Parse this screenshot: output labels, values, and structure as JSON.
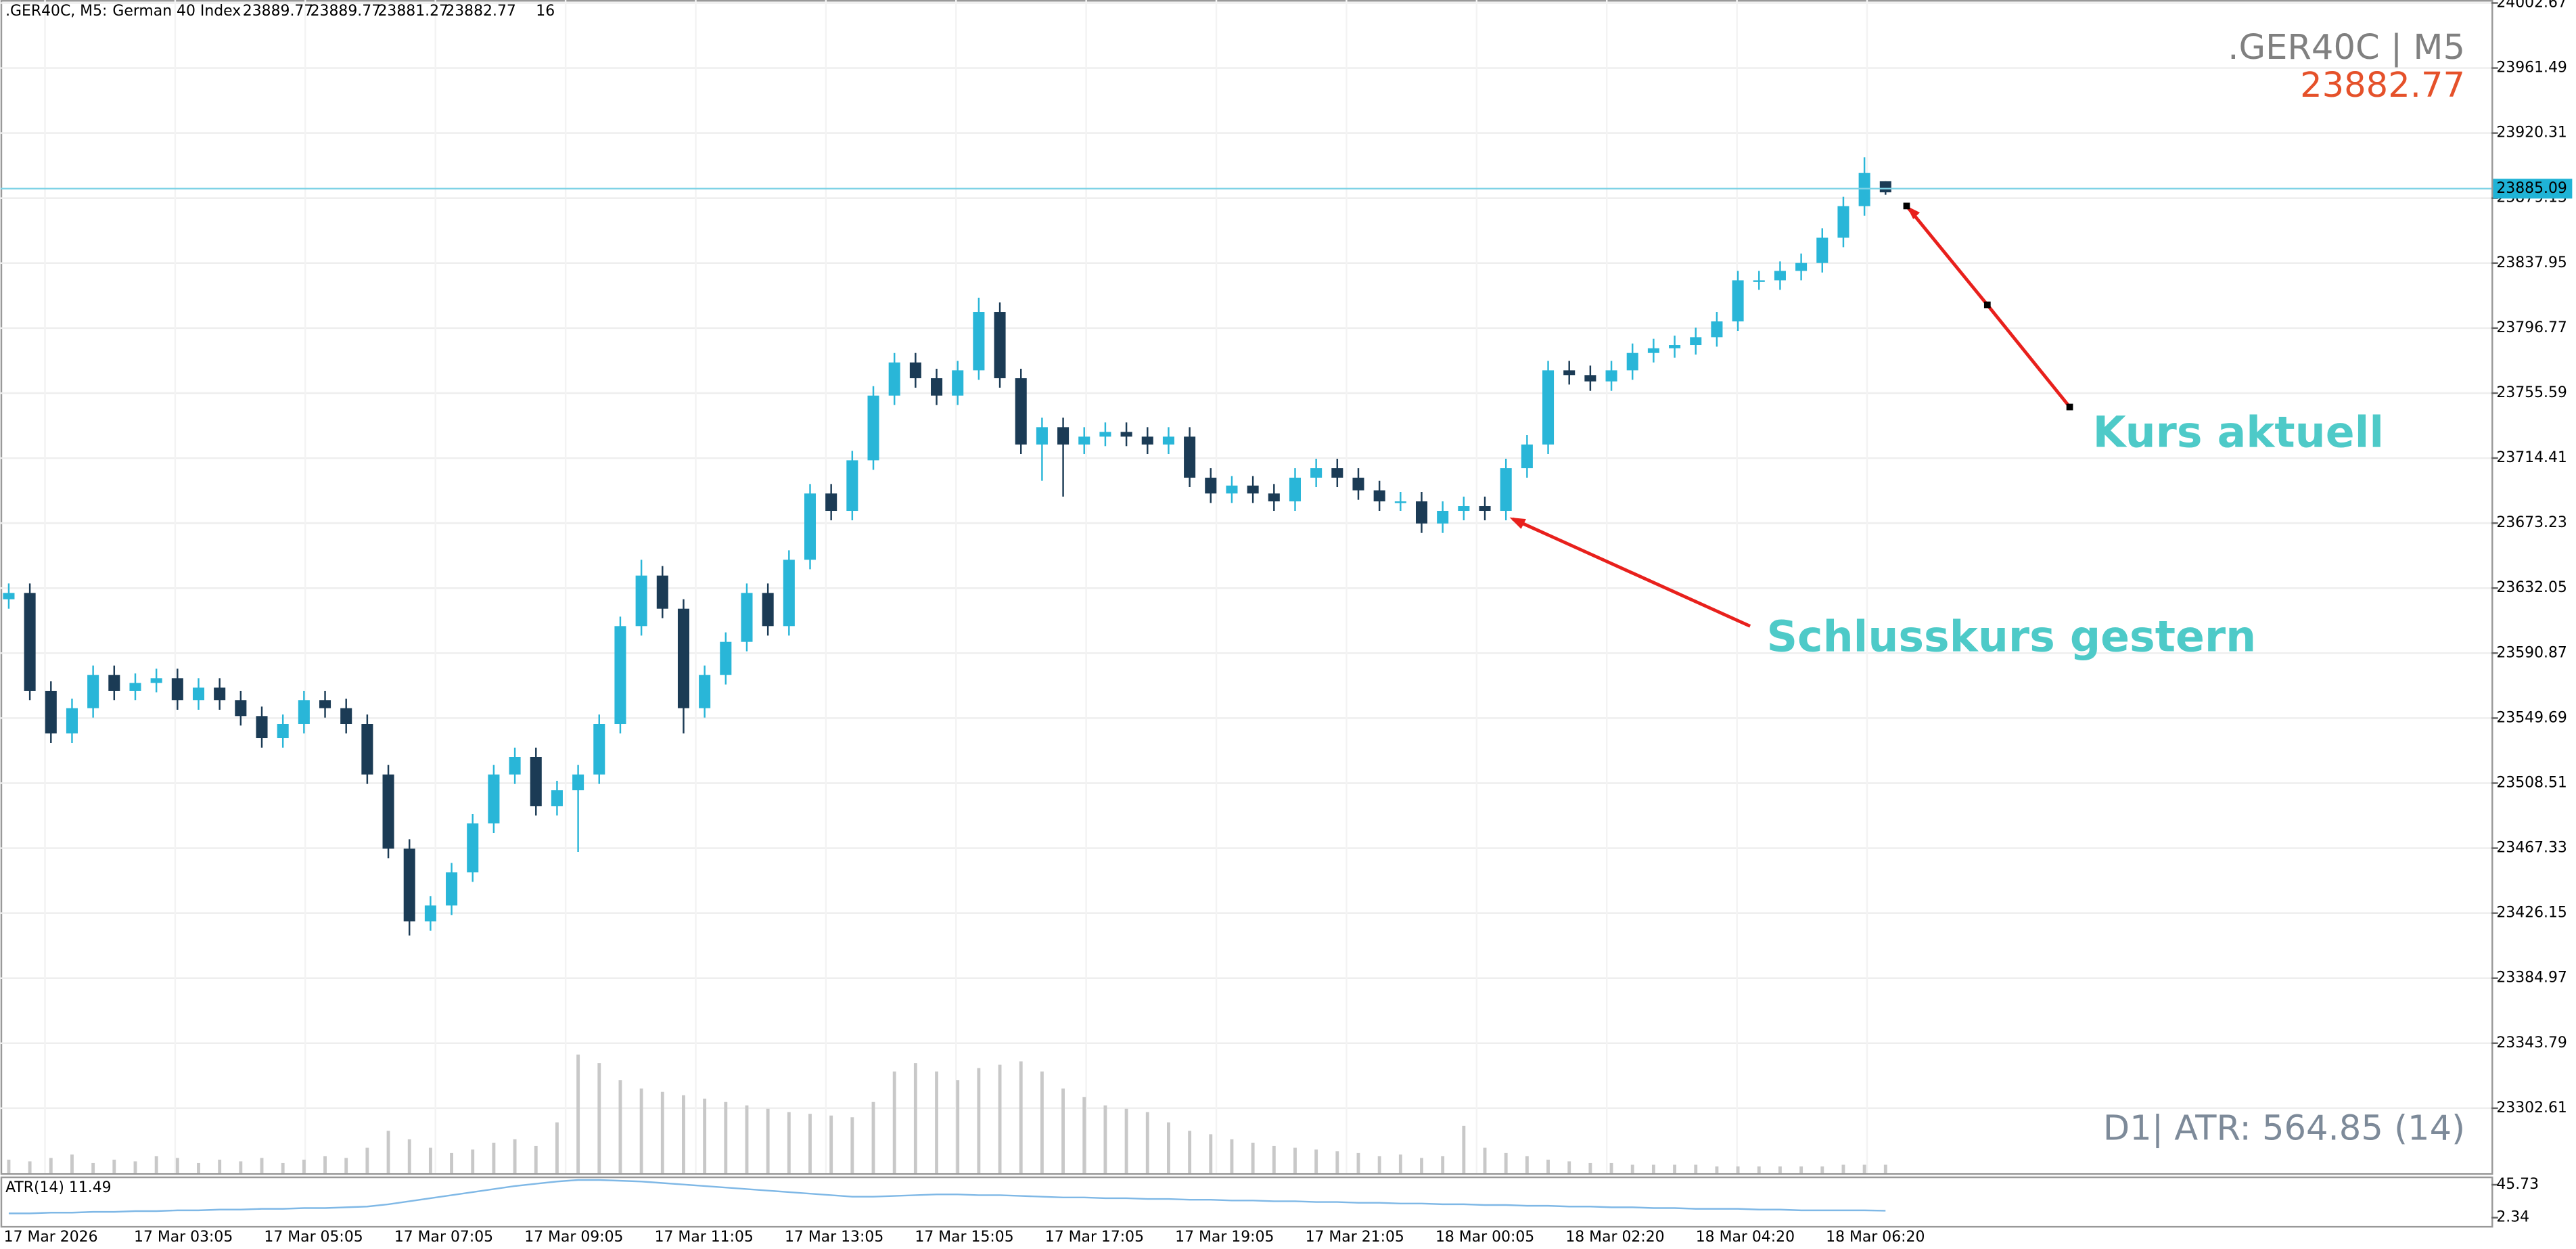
{
  "header": {
    "symbol": ".GER40C, M5:",
    "description": "German 40 Index",
    "ohlc": [
      23889.77,
      23889.77,
      23881.27,
      23882.77
    ],
    "spread": 16
  },
  "chart_data": {
    "type": "candlestick",
    "title": ".GER40C | M5",
    "last_price": 23882.77,
    "price_line": 23885.09,
    "annotations": [
      "Kurs aktuell",
      "Schlusskurs gestern"
    ],
    "atr_text": "D1| ATR: 564.85 (14)",
    "ylim": [
      23261.43,
      24004.59
    ],
    "yticks": [
      24002.67,
      23961.49,
      23920.31,
      23879.13,
      23837.95,
      23796.77,
      23755.59,
      23714.41,
      23673.23,
      23632.05,
      23590.87,
      23549.69,
      23508.51,
      23467.33,
      23426.15,
      23384.97,
      23343.79,
      23302.61
    ],
    "time_labels": [
      "17 Mar 2026",
      "17 Mar 03:05",
      "17 Mar 05:05",
      "17 Mar 07:05",
      "17 Mar 09:05",
      "17 Mar 11:05",
      "17 Mar 13:05",
      "17 Mar 15:05",
      "17 Mar 17:05",
      "17 Mar 19:05",
      "17 Mar 21:05",
      "18 Mar 00:05",
      "18 Mar 02:20",
      "18 Mar 04:20",
      "18 Mar 06:20"
    ],
    "up_color": "#29b6d8",
    "down_color": "#1b3b55",
    "volume_color": "#c8c8c8",
    "grid": true,
    "open": [
      23625,
      23629,
      23567,
      23540,
      23556,
      23577,
      23567,
      23572,
      23575,
      23561,
      23569,
      23561,
      23551,
      23537,
      23546,
      23561,
      23556,
      23546,
      23514,
      23467,
      23421,
      23431,
      23452,
      23483,
      23514,
      23525,
      23494,
      23504,
      23514,
      23546,
      23608,
      23640,
      23619,
      23556,
      23577,
      23598,
      23629,
      23608,
      23650,
      23692,
      23681,
      23713,
      23754,
      23775,
      23765,
      23754,
      23770,
      23807,
      23765,
      23723,
      23734,
      23723,
      23728,
      23731,
      23728,
      23723,
      23728,
      23702,
      23692,
      23697,
      23692,
      23687,
      23702,
      23708,
      23702,
      23694,
      23687,
      23687,
      23673,
      23681,
      23684,
      23681,
      23708,
      23723,
      23770,
      23767,
      23763,
      23770,
      23781,
      23784,
      23786,
      23791,
      23801,
      23827,
      23827,
      23833,
      23838,
      23854,
      23874,
      23889.77
    ],
    "high": [
      23635,
      23635,
      23573,
      23562,
      23583,
      23583,
      23578,
      23581,
      23581,
      23575,
      23575,
      23567,
      23557,
      23552,
      23567,
      23567,
      23562,
      23552,
      23520,
      23473,
      23437,
      23458,
      23489,
      23520,
      23531,
      23531,
      23510,
      23520,
      23552,
      23614,
      23650,
      23646,
      23625,
      23583,
      23604,
      23635,
      23635,
      23656,
      23698,
      23698,
      23719,
      23760,
      23781,
      23781,
      23771,
      23776,
      23816,
      23813,
      23771,
      23740,
      23740,
      23734,
      23737,
      23737,
      23734,
      23734,
      23734,
      23708,
      23703,
      23703,
      23698,
      23708,
      23714,
      23714,
      23708,
      23700,
      23693,
      23693,
      23687,
      23690,
      23690,
      23714,
      23729,
      23776,
      23776,
      23773,
      23776,
      23787,
      23790,
      23792,
      23797,
      23807,
      23833,
      23833,
      23839,
      23844,
      23860,
      23880,
      23905,
      23889.77
    ],
    "low": [
      23619,
      23561,
      23534,
      23534,
      23550,
      23561,
      23561,
      23566,
      23555,
      23555,
      23555,
      23545,
      23531,
      23531,
      23540,
      23550,
      23540,
      23508,
      23461,
      23412,
      23415,
      23425,
      23446,
      23477,
      23508,
      23488,
      23488,
      23465,
      23508,
      23540,
      23602,
      23613,
      23540,
      23550,
      23571,
      23592,
      23602,
      23602,
      23644,
      23675,
      23675,
      23707,
      23748,
      23759,
      23748,
      23748,
      23764,
      23759,
      23717,
      23700,
      23690,
      23717,
      23722,
      23722,
      23717,
      23717,
      23696,
      23686,
      23686,
      23686,
      23681,
      23681,
      23696,
      23696,
      23688,
      23681,
      23681,
      23667,
      23667,
      23675,
      23675,
      23675,
      23702,
      23717,
      23761,
      23757,
      23757,
      23764,
      23775,
      23778,
      23780,
      23785,
      23795,
      23821,
      23821,
      23827,
      23832,
      23848,
      23868,
      23881.27
    ],
    "close": [
      23629,
      23567,
      23540,
      23556,
      23577,
      23567,
      23572,
      23575,
      23561,
      23569,
      23561,
      23551,
      23537,
      23546,
      23561,
      23556,
      23546,
      23514,
      23467,
      23421,
      23431,
      23452,
      23483,
      23514,
      23525,
      23494,
      23504,
      23514,
      23546,
      23608,
      23640,
      23619,
      23556,
      23577,
      23598,
      23629,
      23608,
      23650,
      23692,
      23681,
      23713,
      23754,
      23775,
      23765,
      23754,
      23770,
      23807,
      23765,
      23723,
      23734,
      23723,
      23728,
      23731,
      23728,
      23723,
      23728,
      23702,
      23692,
      23697,
      23692,
      23687,
      23702,
      23708,
      23702,
      23694,
      23687,
      23687,
      23673,
      23681,
      23684,
      23681,
      23708,
      23723,
      23770,
      23767,
      23763,
      23770,
      23781,
      23784,
      23786,
      23791,
      23801,
      23827,
      23827,
      23833,
      23838,
      23854,
      23874,
      23895,
      23882.77
    ],
    "volume": [
      80,
      70,
      90,
      110,
      60,
      80,
      70,
      100,
      90,
      60,
      80,
      70,
      90,
      60,
      80,
      100,
      90,
      150,
      250,
      200,
      150,
      120,
      140,
      180,
      200,
      160,
      300,
      700,
      650,
      550,
      500,
      480,
      460,
      440,
      420,
      400,
      380,
      360,
      350,
      340,
      330,
      420,
      600,
      650,
      600,
      550,
      620,
      640,
      660,
      600,
      500,
      450,
      400,
      380,
      360,
      300,
      250,
      230,
      200,
      180,
      160,
      150,
      140,
      130,
      120,
      100,
      110,
      90,
      100,
      280,
      150,
      120,
      100,
      80,
      70,
      60,
      60,
      50,
      50,
      50,
      50,
      40,
      40,
      40,
      40,
      40,
      40,
      50,
      50,
      50
    ],
    "atr_title": "ATR(14) 11.49",
    "atr_color": "#7fb8e6",
    "atr_ylim": [
      -8.51,
      56.58
    ],
    "atr_yticks": [
      45.73,
      2.34
    ],
    "atr": [
      8,
      8,
      9,
      9,
      10,
      10,
      11,
      11,
      12,
      12,
      13,
      13,
      14,
      14,
      15,
      15,
      16,
      17,
      20,
      24,
      28,
      32,
      36,
      40,
      44,
      47,
      50,
      52,
      52,
      51,
      50,
      48,
      46,
      44,
      42,
      40,
      38,
      36,
      34,
      32,
      30,
      30,
      31,
      32,
      33,
      33,
      32,
      32,
      31,
      30,
      29,
      29,
      28,
      28,
      27,
      27,
      26,
      26,
      25,
      25,
      24,
      24,
      23,
      23,
      22,
      22,
      21,
      21,
      20,
      20,
      19,
      19,
      18,
      18,
      17,
      17,
      16,
      16,
      15,
      15,
      14,
      14,
      14,
      13,
      13,
      12,
      12,
      12,
      12,
      11.49
    ]
  }
}
